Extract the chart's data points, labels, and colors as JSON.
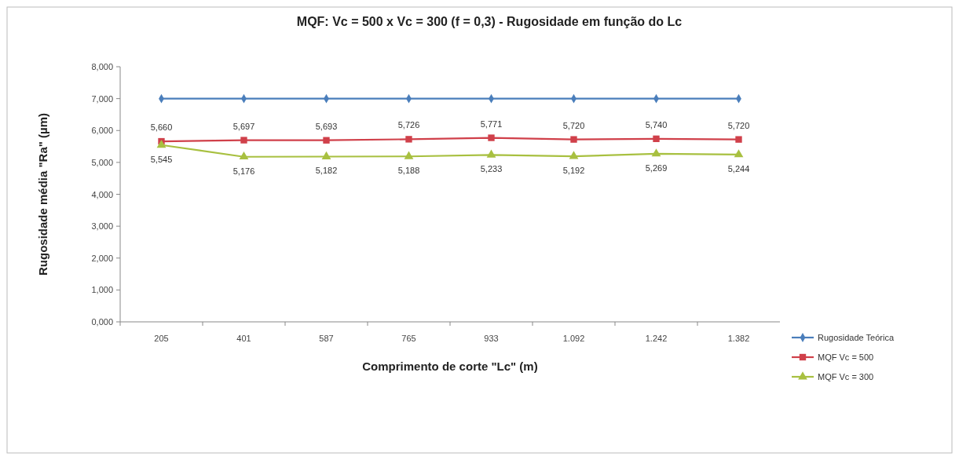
{
  "chart_data": {
    "type": "line",
    "title": "MQF: Vc = 500  x  Vc = 300  (f = 0,3)  -  Rugosidade em função do Lc",
    "xlabel": "Comprimento de corte  \"Lc\" (m)",
    "ylabel": "Rugosidade média \"Ra\" (µm)",
    "categories": [
      "205",
      "401",
      "587",
      "765",
      "933",
      "1.092",
      "1.242",
      "1.382"
    ],
    "series": [
      {
        "name": "Rugosidade Teórica",
        "color": "#4a7ebb",
        "marker": "diamond",
        "values": [
          7.0,
          7.0,
          7.0,
          7.0,
          7.0,
          7.0,
          7.0,
          7.0
        ]
      },
      {
        "name": "MQF Vc = 500",
        "color": "#d0404a",
        "marker": "square",
        "values": [
          5.66,
          5.697,
          5.693,
          5.726,
          5.771,
          5.72,
          5.74,
          5.72
        ],
        "value_labels": [
          "5,660",
          "5,697",
          "5,693",
          "5,726",
          "5,771",
          "5,720",
          "5,740",
          "5,720"
        ]
      },
      {
        "name": "MQF Vc = 300",
        "color": "#a8c040",
        "marker": "triangle",
        "values": [
          5.545,
          5.176,
          5.182,
          5.188,
          5.233,
          5.192,
          5.269,
          5.244
        ],
        "value_labels": [
          "5,545",
          "5,176",
          "5,182",
          "5,188",
          "5,233",
          "5,192",
          "5,269",
          "5,244"
        ]
      }
    ],
    "ylim": [
      0,
      8
    ],
    "yticks": [
      {
        "value": 0,
        "label": "0,000"
      },
      {
        "value": 1,
        "label": "1,000"
      },
      {
        "value": 2,
        "label": "2,000"
      },
      {
        "value": 3,
        "label": "3,000"
      },
      {
        "value": 4,
        "label": "4,000"
      },
      {
        "value": 5,
        "label": "5,000"
      },
      {
        "value": 6,
        "label": "6,000"
      },
      {
        "value": 7,
        "label": "7,000"
      },
      {
        "value": 8,
        "label": "8,000"
      }
    ],
    "grid": false,
    "legend": "right",
    "line_style": "solid"
  }
}
